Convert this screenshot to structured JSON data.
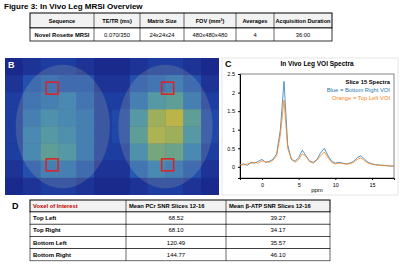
{
  "title": "Figure 3: In Vivo Leg MRSI Overview",
  "table_a": {
    "columns": [
      "Sequence",
      "TE/TR (ms)",
      "Matrix Size",
      "FOV (mm³)",
      "Averages",
      "Acquisition Duration"
    ],
    "rows": [
      [
        "Novel Rosette MRSI",
        "0.070/350",
        "24x24x24",
        "480x480x480",
        "4",
        "36:00"
      ]
    ]
  },
  "panel_b": {
    "label": "B",
    "cells": [
      [
        0.1,
        0.15,
        0.2,
        0.2,
        0.15,
        0.1,
        0.1,
        0.15,
        0.2,
        0.2,
        0.15,
        0.1
      ],
      [
        0.15,
        0.3,
        0.35,
        0.3,
        0.3,
        0.15,
        0.15,
        0.3,
        0.35,
        0.4,
        0.3,
        0.15
      ],
      [
        0.2,
        0.35,
        0.4,
        0.45,
        0.35,
        0.2,
        0.2,
        0.4,
        0.55,
        0.6,
        0.4,
        0.2
      ],
      [
        0.2,
        0.4,
        0.5,
        0.45,
        0.4,
        0.2,
        0.25,
        0.55,
        0.85,
        0.95,
        0.6,
        0.25
      ],
      [
        0.2,
        0.45,
        0.55,
        0.5,
        0.4,
        0.2,
        0.25,
        0.6,
        0.9,
        0.85,
        0.55,
        0.25
      ],
      [
        0.2,
        0.45,
        0.6,
        0.55,
        0.4,
        0.2,
        0.2,
        0.5,
        0.7,
        0.65,
        0.45,
        0.2
      ],
      [
        0.15,
        0.3,
        0.4,
        0.4,
        0.3,
        0.15,
        0.15,
        0.35,
        0.45,
        0.4,
        0.3,
        0.15
      ],
      [
        0.1,
        0.15,
        0.2,
        0.2,
        0.15,
        0.1,
        0.1,
        0.15,
        0.2,
        0.2,
        0.15,
        0.1
      ]
    ]
  },
  "chart_data": {
    "type": "line",
    "label": "C",
    "title": "In Vivo Leg VOI Spectra",
    "annotations": [
      "Slice 15 Spectra",
      "Blue = Bottom Right VOI",
      "Orange = Top Left VOI"
    ],
    "x_label": "ppm",
    "x": [
      -3,
      -2.5,
      -2,
      -1.5,
      -1,
      -0.5,
      0,
      0.5,
      1,
      1.5,
      2,
      2.5,
      3,
      3.5,
      4,
      4.5,
      5,
      5.5,
      6,
      6.5,
      7,
      7.5,
      8,
      8.5,
      9,
      9.5,
      10,
      10.5,
      11,
      11.5,
      12,
      12.5,
      13,
      13.5,
      14,
      14.5,
      15,
      15.5,
      16,
      16.5,
      17,
      17.5,
      18
    ],
    "series": [
      {
        "color": "#1f77b4",
        "values": [
          0.05,
          0.08,
          0.04,
          0.12,
          0.1,
          0.15,
          0.2,
          0.12,
          0.15,
          0.2,
          0.35,
          1.0,
          2.3,
          0.6,
          0.2,
          0.15,
          0.25,
          0.45,
          0.3,
          0.15,
          0.12,
          0.2,
          0.38,
          0.5,
          0.3,
          0.15,
          0.1,
          0.12,
          0.1,
          0.08,
          0.1,
          0.15,
          0.25,
          0.3,
          0.2,
          0.12,
          0.08,
          0.06,
          0.05,
          0.04,
          0.03,
          0.02,
          0.02
        ]
      },
      {
        "color": "#ff7f0e",
        "values": [
          0.06,
          0.05,
          0.08,
          0.1,
          0.12,
          0.1,
          0.16,
          0.14,
          0.12,
          0.18,
          0.3,
          0.85,
          1.8,
          0.5,
          0.22,
          0.12,
          0.2,
          0.35,
          0.28,
          0.14,
          0.1,
          0.18,
          0.3,
          0.4,
          0.25,
          0.12,
          0.08,
          0.1,
          0.09,
          0.07,
          0.09,
          0.12,
          0.2,
          0.24,
          0.16,
          0.1,
          0.07,
          0.05,
          0.04,
          0.04,
          0.03,
          0.03,
          0.02
        ]
      }
    ],
    "xlim": [
      -3,
      18
    ],
    "xticks": [
      0,
      5,
      10,
      15
    ],
    "ylim": [
      -0.3,
      2.5
    ],
    "yticks": [
      0,
      0.5,
      1,
      1.5,
      2,
      2.5
    ]
  },
  "table_d": {
    "label": "D",
    "columns": [
      "Voxel of Interest",
      "Mean PCr SNR Slices 12-16",
      "Mean β-ATP SNR Slices 12-16"
    ],
    "rows": [
      [
        "Top Left",
        "68.52",
        "39.27"
      ],
      [
        "Top Right",
        "68.10",
        "34.17"
      ],
      [
        "Bottom Left",
        "120.49",
        "35.57"
      ],
      [
        "Bottom Right",
        "144.77",
        "46.10"
      ]
    ]
  }
}
